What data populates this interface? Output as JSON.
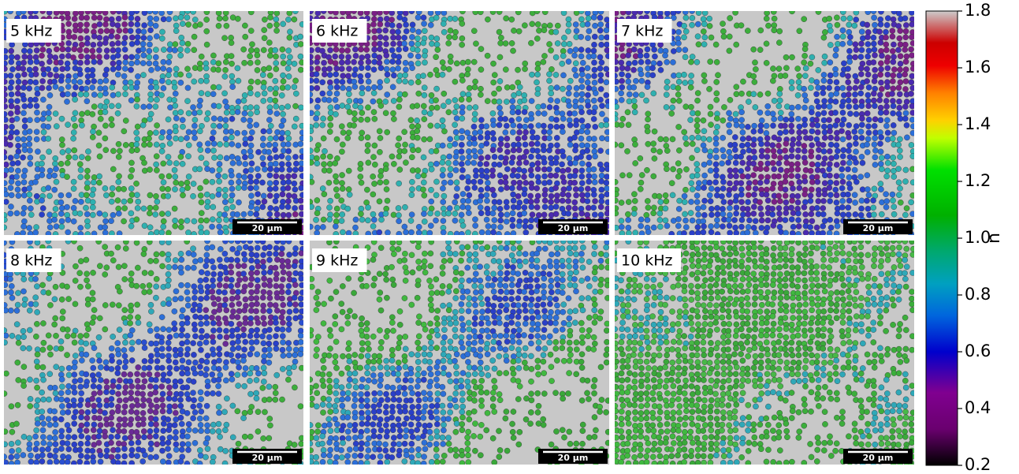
{
  "panels": [
    {
      "label": "5 kHz",
      "scale_bar": "20 µm"
    },
    {
      "label": "6 kHz",
      "scale_bar": "20 µm"
    },
    {
      "label": "7 kHz",
      "scale_bar": "20 µm"
    },
    {
      "label": "8 kHz",
      "scale_bar": "20 µm"
    },
    {
      "label": "9 kHz",
      "scale_bar": "20 µm"
    },
    {
      "label": "10 kHz",
      "scale_bar": "20 µm"
    }
  ],
  "colorbar": {
    "label": "n",
    "lim": [
      0.2,
      1.8
    ],
    "ticks": [
      0.2,
      0.4,
      0.6,
      0.8,
      {
        "value": 1,
        "label": "1.0"
      },
      1.2,
      1.4,
      1.6,
      1.8
    ]
  }
}
